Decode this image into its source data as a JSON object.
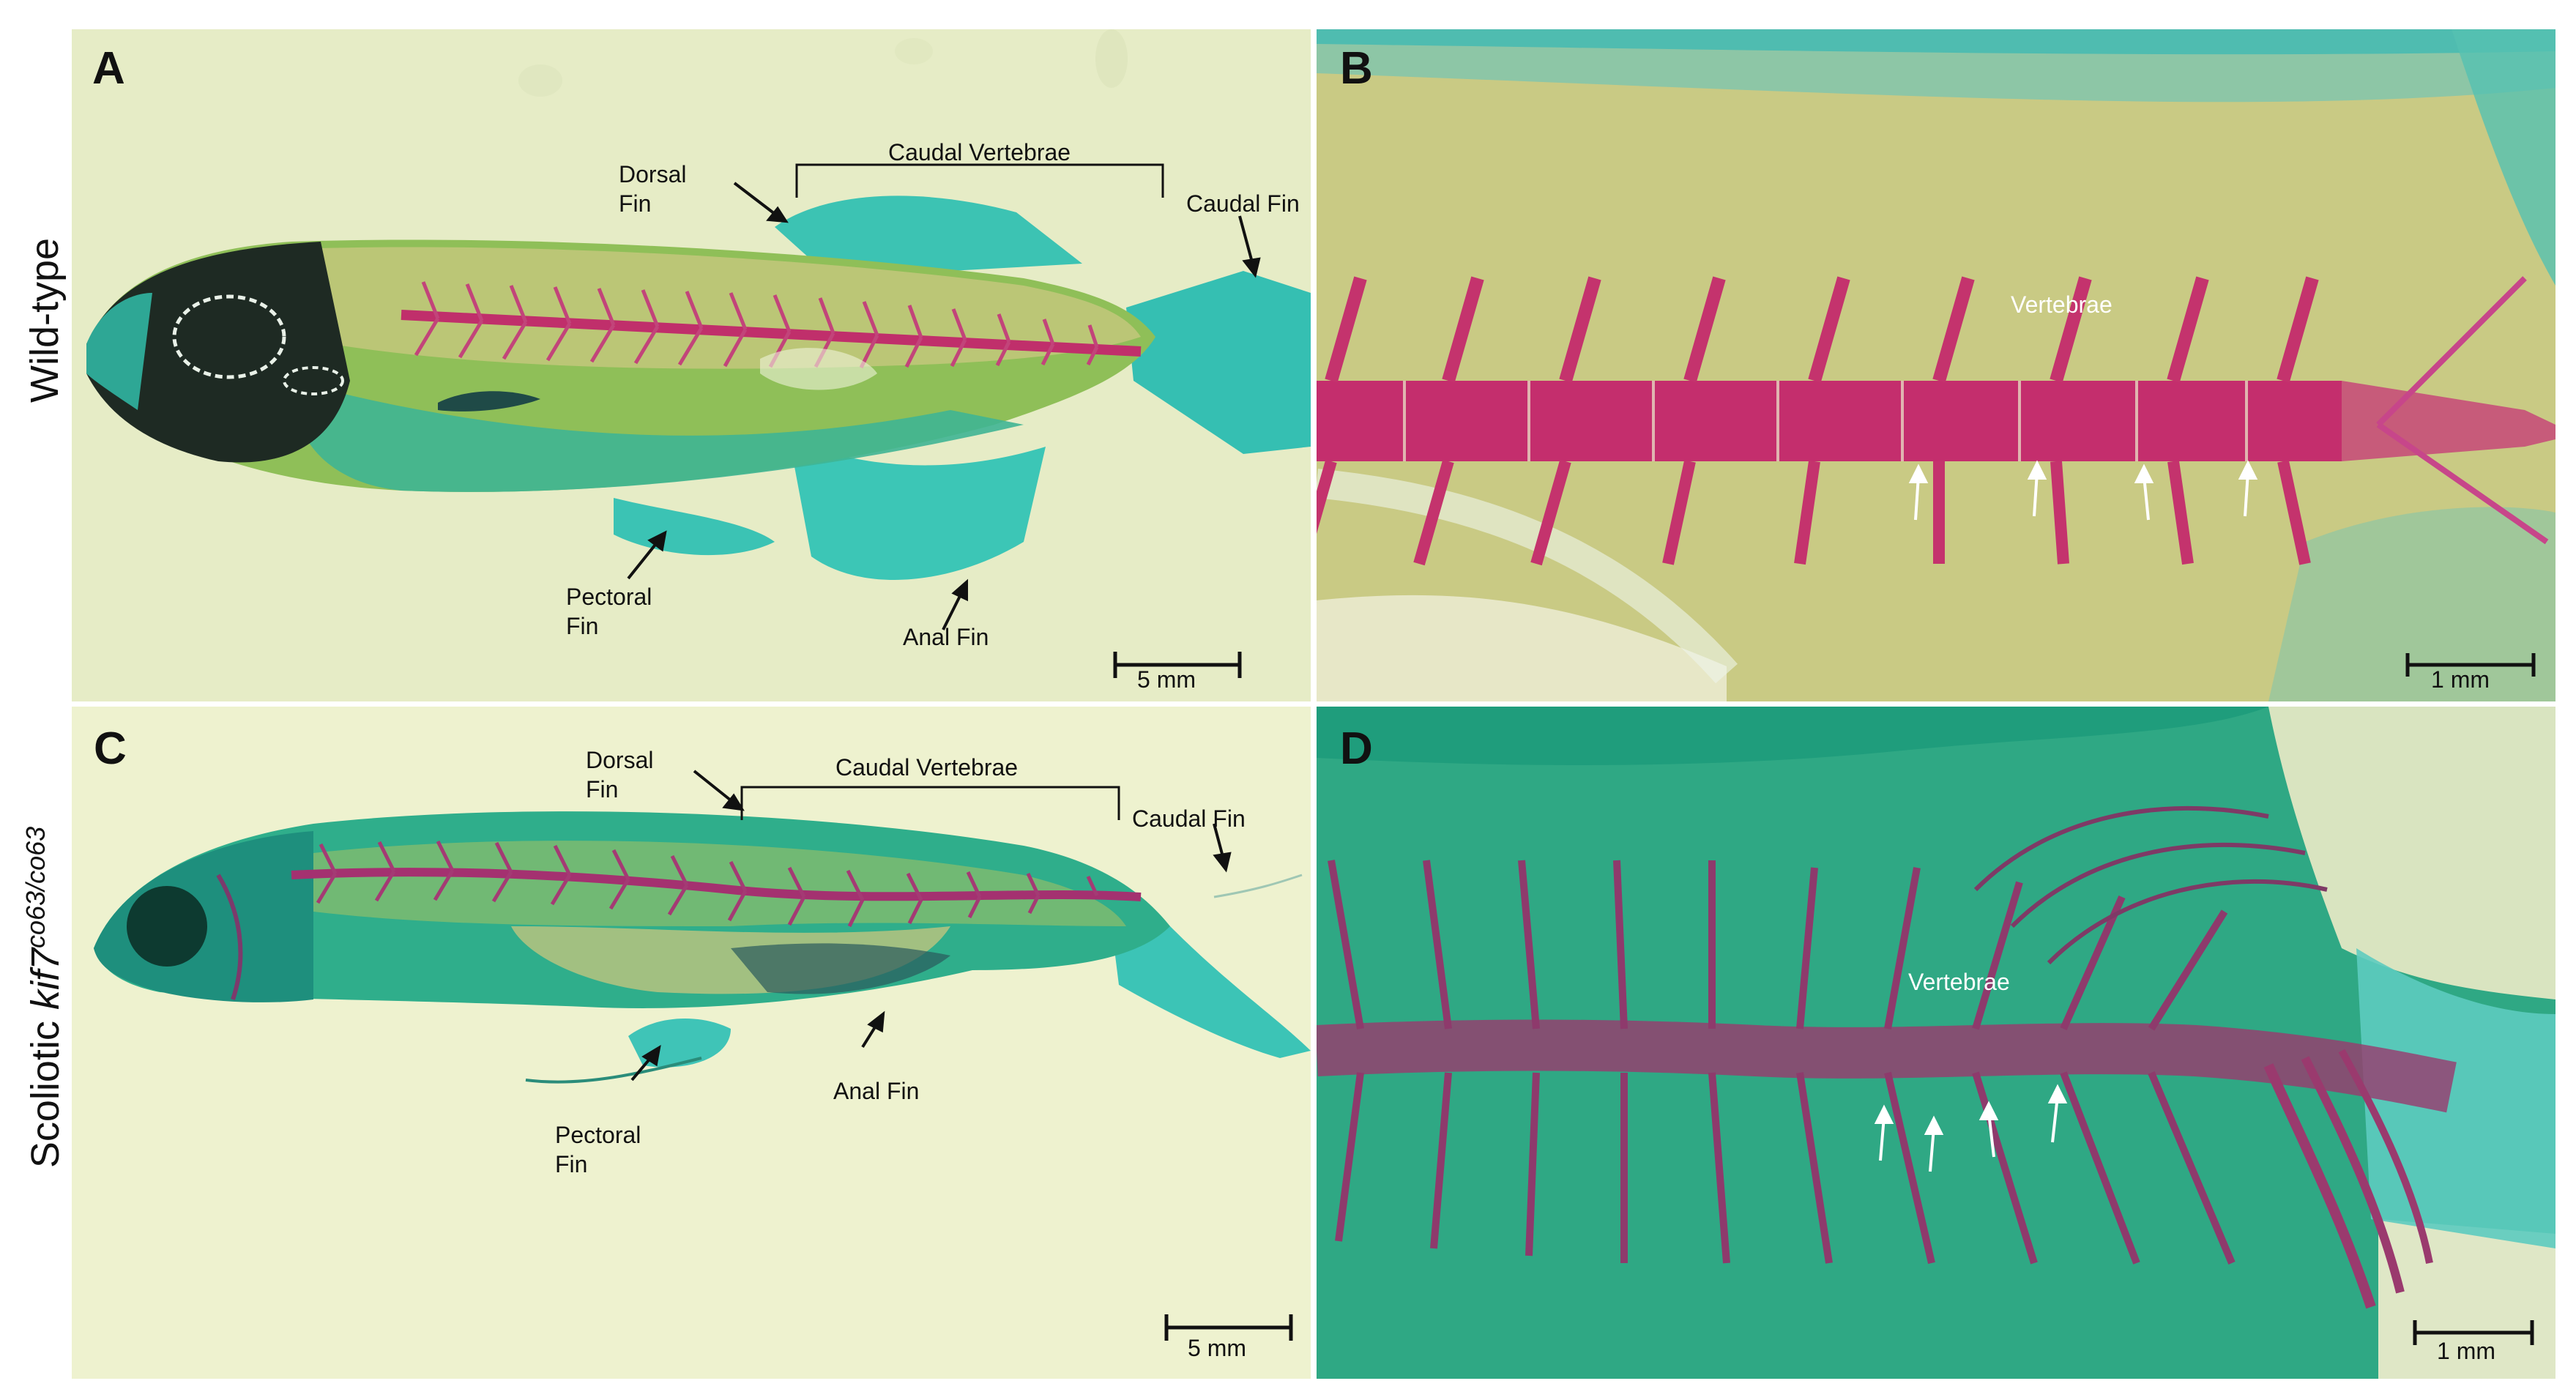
{
  "rows": {
    "wild_type": "Wild-type",
    "scoliotic_prefix": "Scoliotic ",
    "scoliotic_gene": "kif7",
    "scoliotic_sup": "co63/co63"
  },
  "panels": {
    "A": {
      "label": "A",
      "caudal_vertebrae": "Caudal Vertebrae",
      "dorsal_fin_1": "Dorsal",
      "dorsal_fin_2": "Fin",
      "caudal_fin": "Caudal Fin",
      "pectoral_fin_1": "Pectoral",
      "pectoral_fin_2": "Fin",
      "anal_fin": "Anal Fin",
      "scale": "5 mm"
    },
    "B": {
      "label": "B",
      "vertebrae": "Vertebrae",
      "scale": "1 mm"
    },
    "C": {
      "label": "C",
      "caudal_vertebrae": "Caudal Vertebrae",
      "dorsal_fin_1": "Dorsal",
      "dorsal_fin_2": "Fin",
      "caudal_fin": "Caudal Fin",
      "pectoral_fin_1": "Pectoral",
      "pectoral_fin_2": "Fin",
      "anal_fin": "Anal Fin",
      "scale": "5 mm"
    },
    "D": {
      "label": "D",
      "vertebrae": "Vertebrae",
      "scale": "1 mm"
    }
  },
  "colors": {
    "background_wt": "#e9efcb",
    "fish_green": "#2fb79a",
    "cartilage_teal": "#38c2b4",
    "bone_red": "#c0306a",
    "tissue_yellow": "#c7c983",
    "mutant_green": "#27a884"
  }
}
